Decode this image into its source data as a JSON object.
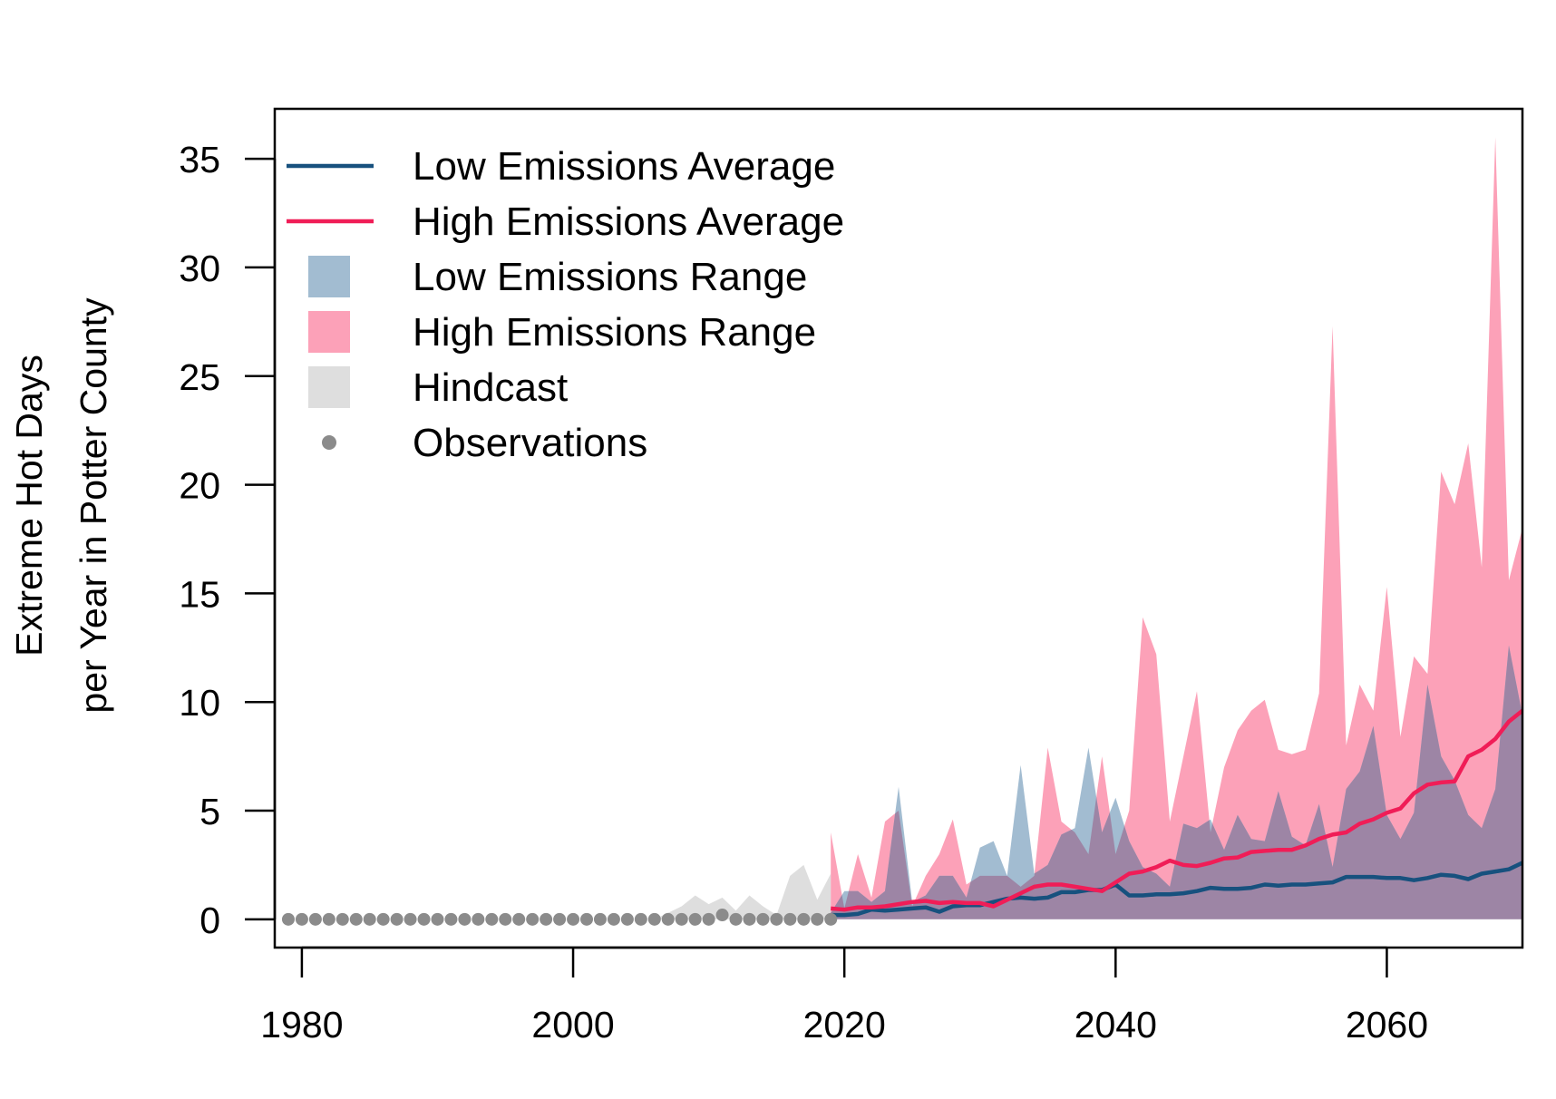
{
  "chart_data": {
    "type": "area",
    "title": "",
    "xlabel": "",
    "ylabel_lines": [
      "Extreme Hot Days",
      "per Year in Potter County"
    ],
    "xlim": [
      1978,
      2070
    ],
    "ylim": [
      -1.3,
      37.3
    ],
    "x_ticks": [
      1980,
      2000,
      2020,
      2040,
      2060
    ],
    "y_ticks": [
      0,
      5,
      10,
      15,
      20,
      25,
      30,
      35
    ],
    "grid": false,
    "legend_position": "top-left",
    "legend": [
      {
        "label": "Low Emissions Average",
        "kind": "line",
        "color": "#17517e"
      },
      {
        "label": "High Emissions Average",
        "kind": "line",
        "color": "#f01d57"
      },
      {
        "label": "Low Emissions Range",
        "kind": "fill",
        "color": "#a2bcd1"
      },
      {
        "label": "High Emissions Range",
        "kind": "fill",
        "color": "#fca1b8"
      },
      {
        "label": "Hindcast",
        "kind": "fill",
        "color": "#dedede"
      },
      {
        "label": "Observations",
        "kind": "point",
        "color": "#8b8b8b"
      }
    ],
    "colors": {
      "low_avg": "#17517e",
      "high_avg": "#f01d57",
      "low_range": "#a2bcd1",
      "high_range": "#fca1b8",
      "overlap": "#9d85a5",
      "hindcast": "#dedede",
      "observations": "#8b8b8b"
    },
    "series": [
      {
        "name": "Observations",
        "kind": "points",
        "x": [
          1979,
          1980,
          1981,
          1982,
          1983,
          1984,
          1985,
          1986,
          1987,
          1988,
          1989,
          1990,
          1991,
          1992,
          1993,
          1994,
          1995,
          1996,
          1997,
          1998,
          1999,
          2000,
          2001,
          2002,
          2003,
          2004,
          2005,
          2006,
          2007,
          2008,
          2009,
          2010,
          2011,
          2012,
          2013,
          2014,
          2015,
          2016,
          2017,
          2018,
          2019
        ],
        "values": [
          0,
          0,
          0,
          0,
          0,
          0,
          0,
          0,
          0,
          0,
          0,
          0,
          0,
          0,
          0,
          0,
          0,
          0,
          0,
          0,
          0,
          0,
          0,
          0,
          0,
          0,
          0,
          0,
          0,
          0,
          0,
          0,
          0.2,
          0,
          0,
          0,
          0,
          0,
          0,
          0,
          0
        ]
      },
      {
        "name": "Hindcast",
        "kind": "range",
        "x": [
          2006,
          2007,
          2008,
          2009,
          2010,
          2011,
          2012,
          2013,
          2014,
          2015,
          2016,
          2017,
          2018,
          2019
        ],
        "upper": [
          0,
          0.3,
          0.6,
          1.1,
          0.7,
          1.0,
          0.4,
          1.1,
          0.6,
          0.2,
          2.0,
          2.5,
          0.9,
          2.1
        ],
        "lower": [
          0,
          0,
          0,
          0,
          0,
          0,
          0,
          0,
          0,
          0,
          0,
          0,
          0,
          0
        ]
      },
      {
        "name": "High Emissions Range",
        "kind": "range",
        "x": [
          2019,
          2020,
          2021,
          2022,
          2023,
          2024,
          2025,
          2026,
          2027,
          2028,
          2029,
          2030,
          2031,
          2032,
          2033,
          2034,
          2035,
          2036,
          2037,
          2038,
          2039,
          2040,
          2041,
          2042,
          2043,
          2044,
          2045,
          2046,
          2047,
          2048,
          2049,
          2050,
          2051,
          2052,
          2053,
          2054,
          2055,
          2056,
          2057,
          2058,
          2059,
          2060,
          2061,
          2062,
          2063,
          2064,
          2065,
          2066,
          2067,
          2068,
          2069,
          2070
        ],
        "upper": [
          4.0,
          0.5,
          3.0,
          1.0,
          4.5,
          5.0,
          0.6,
          2.0,
          3.0,
          4.6,
          1.6,
          2.0,
          2.0,
          2.0,
          1.5,
          2.0,
          7.9,
          4.5,
          4.0,
          3.0,
          7.5,
          3.0,
          5.0,
          13.9,
          12.2,
          4.5,
          7.5,
          10.5,
          4.0,
          7.0,
          8.7,
          9.6,
          10.1,
          7.8,
          7.6,
          7.8,
          10.4,
          27.3,
          8.0,
          10.8,
          9.6,
          15.3,
          8.4,
          12.1,
          11.3,
          20.6,
          19.1,
          21.9,
          16.2,
          36.0,
          15.6,
          18.0
        ],
        "lower": [
          0,
          0,
          0,
          0,
          0,
          0,
          0,
          0,
          0,
          0,
          0,
          0,
          0,
          0,
          0,
          0,
          0,
          0,
          0,
          0,
          0,
          0,
          0,
          0,
          0,
          0,
          0,
          0,
          0,
          0,
          0,
          0,
          0,
          0,
          0,
          0,
          0,
          0,
          0,
          0,
          0,
          0,
          0,
          0,
          0,
          0,
          0,
          0,
          0,
          0,
          0,
          0
        ]
      },
      {
        "name": "Low Emissions Range",
        "kind": "range",
        "x": [
          2019,
          2020,
          2021,
          2022,
          2023,
          2024,
          2025,
          2026,
          2027,
          2028,
          2029,
          2030,
          2031,
          2032,
          2033,
          2034,
          2035,
          2036,
          2037,
          2038,
          2039,
          2040,
          2041,
          2042,
          2043,
          2044,
          2045,
          2046,
          2047,
          2048,
          2049,
          2050,
          2051,
          2052,
          2053,
          2054,
          2055,
          2056,
          2057,
          2058,
          2059,
          2060,
          2061,
          2062,
          2063,
          2064,
          2065,
          2066,
          2067,
          2068,
          2069,
          2070
        ],
        "upper": [
          0.3,
          1.3,
          1.3,
          0.8,
          1.3,
          6.1,
          0.8,
          1.1,
          2.0,
          2.0,
          1.0,
          3.3,
          3.6,
          2.0,
          7.1,
          2.1,
          2.5,
          3.9,
          4.2,
          7.9,
          4.0,
          5.6,
          3.6,
          2.4,
          2.1,
          1.5,
          4.4,
          4.2,
          4.6,
          3.2,
          4.8,
          3.7,
          3.6,
          5.9,
          3.8,
          3.4,
          5.3,
          2.4,
          6.0,
          6.8,
          8.9,
          4.8,
          3.7,
          4.9,
          10.8,
          7.5,
          6.4,
          4.8,
          4.2,
          6.0,
          12.6,
          9.4
        ],
        "lower": [
          0,
          0,
          0,
          0,
          0,
          0,
          0,
          0,
          0,
          0,
          0,
          0,
          0,
          0,
          0,
          0,
          0,
          0,
          0,
          0,
          0,
          0,
          0,
          0,
          0,
          0,
          0,
          0,
          0,
          0,
          0,
          0,
          0,
          0,
          0,
          0,
          0,
          0,
          0,
          0,
          0,
          0,
          0,
          0,
          0,
          0,
          0,
          0,
          0,
          0,
          0,
          0
        ]
      },
      {
        "name": "High Emissions Average",
        "kind": "line",
        "x": [
          2019,
          2020,
          2021,
          2022,
          2023,
          2024,
          2025,
          2026,
          2027,
          2028,
          2029,
          2030,
          2031,
          2032,
          2033,
          2034,
          2035,
          2036,
          2037,
          2038,
          2039,
          2040,
          2041,
          2042,
          2043,
          2044,
          2045,
          2046,
          2047,
          2048,
          2049,
          2050,
          2051,
          2052,
          2053,
          2054,
          2055,
          2056,
          2057,
          2058,
          2059,
          2060,
          2061,
          2062,
          2063,
          2064,
          2065,
          2066,
          2067,
          2068,
          2069,
          2070
        ],
        "values": [
          0.5,
          0.45,
          0.55,
          0.55,
          0.6,
          0.7,
          0.8,
          0.85,
          0.75,
          0.8,
          0.75,
          0.75,
          0.6,
          0.9,
          1.2,
          1.5,
          1.6,
          1.6,
          1.5,
          1.4,
          1.3,
          1.7,
          2.1,
          2.2,
          2.4,
          2.7,
          2.5,
          2.45,
          2.6,
          2.8,
          2.85,
          3.1,
          3.15,
          3.2,
          3.2,
          3.4,
          3.7,
          3.9,
          4.0,
          4.4,
          4.6,
          4.9,
          5.1,
          5.8,
          6.2,
          6.3,
          6.35,
          7.5,
          7.8,
          8.3,
          9.1,
          9.6
        ]
      },
      {
        "name": "Low Emissions Average",
        "kind": "line",
        "x": [
          2019,
          2020,
          2021,
          2022,
          2023,
          2024,
          2025,
          2026,
          2027,
          2028,
          2029,
          2030,
          2031,
          2032,
          2033,
          2034,
          2035,
          2036,
          2037,
          2038,
          2039,
          2040,
          2041,
          2042,
          2043,
          2044,
          2045,
          2046,
          2047,
          2048,
          2049,
          2050,
          2051,
          2052,
          2053,
          2054,
          2055,
          2056,
          2057,
          2058,
          2059,
          2060,
          2061,
          2062,
          2063,
          2064,
          2065,
          2066,
          2067,
          2068,
          2069,
          2070
        ],
        "values": [
          0.2,
          0.2,
          0.25,
          0.45,
          0.4,
          0.45,
          0.5,
          0.55,
          0.35,
          0.6,
          0.65,
          0.65,
          0.8,
          0.95,
          1.0,
          0.95,
          1.0,
          1.25,
          1.25,
          1.35,
          1.35,
          1.6,
          1.1,
          1.1,
          1.15,
          1.15,
          1.2,
          1.3,
          1.45,
          1.4,
          1.4,
          1.45,
          1.6,
          1.55,
          1.6,
          1.6,
          1.65,
          1.7,
          1.95,
          1.95,
          1.95,
          1.9,
          1.9,
          1.8,
          1.9,
          2.05,
          2.0,
          1.85,
          2.1,
          2.2,
          2.3,
          2.6
        ]
      }
    ]
  }
}
